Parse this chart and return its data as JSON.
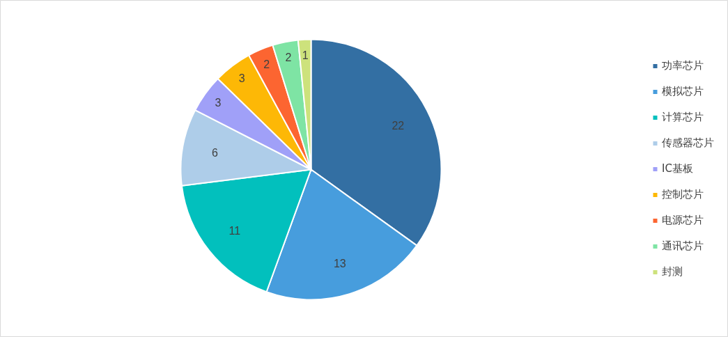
{
  "chart_data": {
    "type": "pie",
    "categories": [
      "功率芯片",
      "模拟芯片",
      "计算芯片",
      "传感器芯片",
      "IC基板",
      "控制芯片",
      "电源芯片",
      "通讯芯片",
      "封测"
    ],
    "values": [
      22,
      13,
      11,
      6,
      3,
      3,
      2,
      2,
      1
    ],
    "colors": [
      "#336fa3",
      "#479ddd",
      "#02c0bd",
      "#aecde9",
      "#a0a0f8",
      "#fdb806",
      "#fc6531",
      "#7ee4a4",
      "#cde27c"
    ],
    "data_labels": true,
    "legend": "right"
  }
}
